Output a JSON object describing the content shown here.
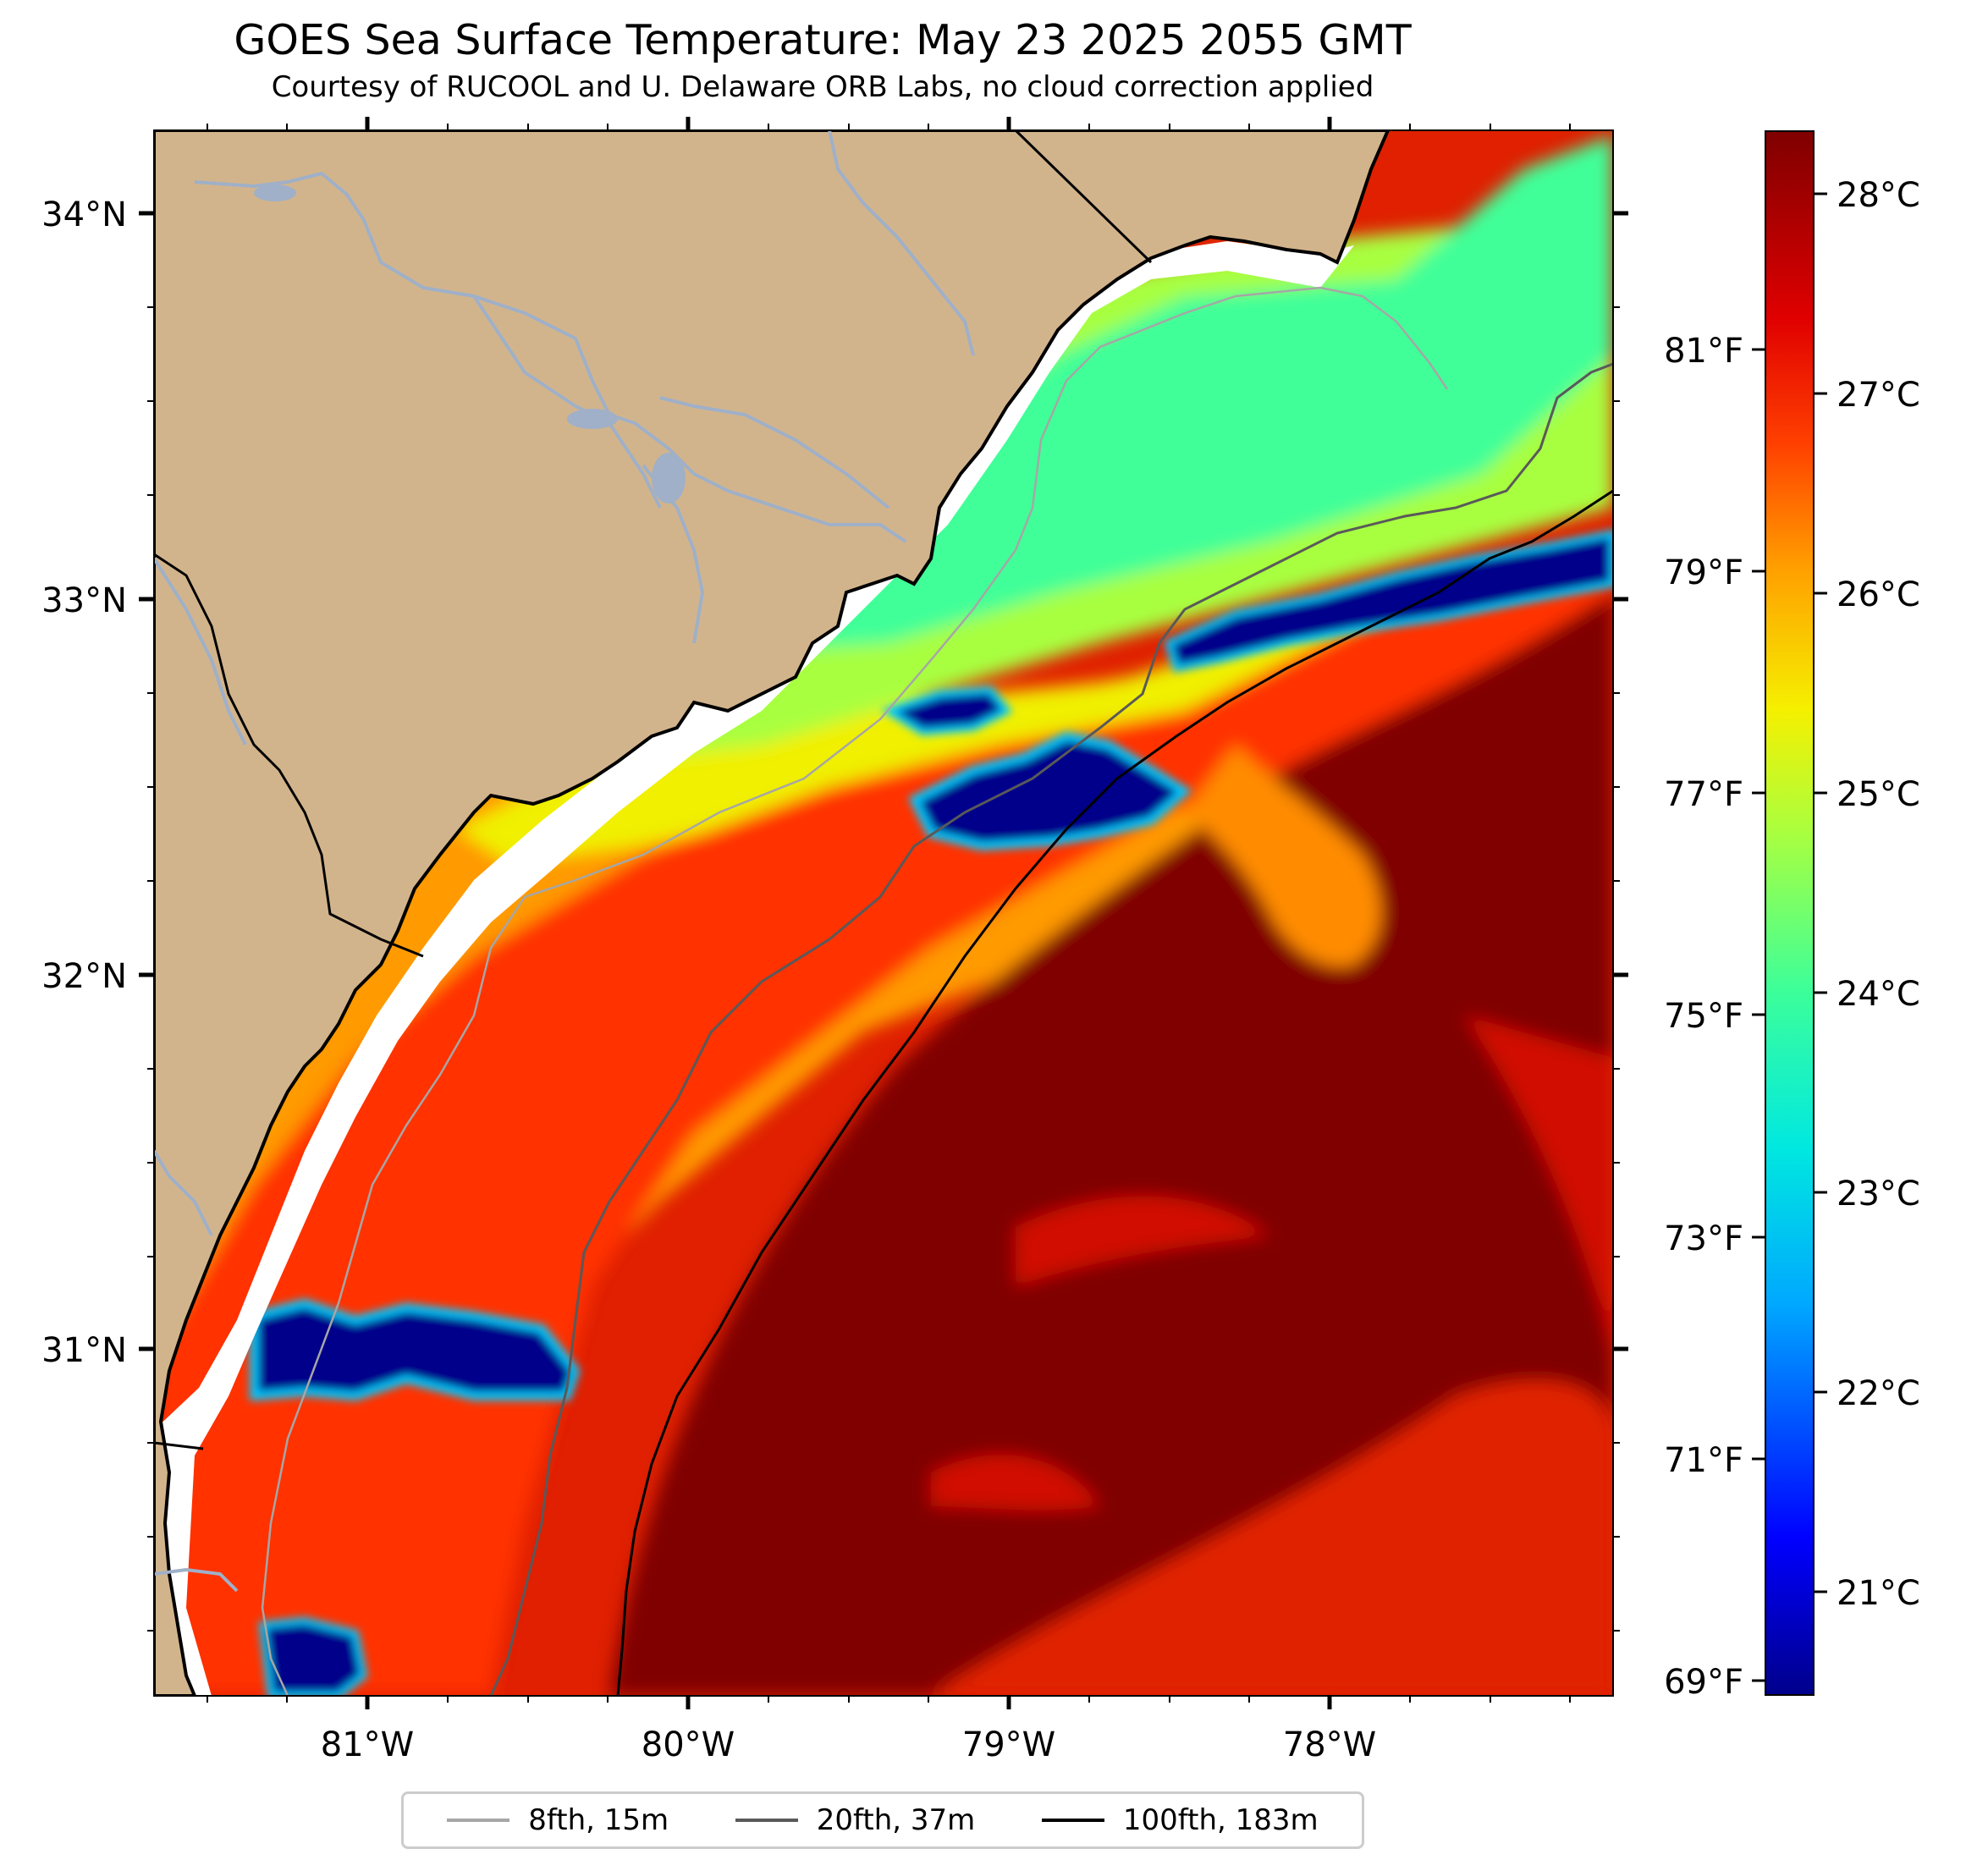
{
  "title": "GOES Sea Surface Temperature: May 23 2025 2055 GMT",
  "subtitle": "Courtesy of RUCOOL and U. Delaware ORB Labs, no cloud correction applied",
  "axes": {
    "longitude_ticks": [
      "81°W",
      "80°W",
      "79°W",
      "78°W"
    ],
    "latitude_ticks": [
      "34°N",
      "33°N",
      "32°N",
      "31°N"
    ],
    "fahrenheit_ticks": [
      "81°F",
      "79°F",
      "77°F",
      "75°F",
      "73°F",
      "71°F",
      "69°F"
    ]
  },
  "colorbar": {
    "celsius_ticks": [
      "28°C",
      "27°C",
      "26°C",
      "25°C",
      "24°C",
      "23°C",
      "22°C",
      "21°C"
    ],
    "colors": [
      "#00008b",
      "#0000ff",
      "#00a8ff",
      "#00e8e0",
      "#3cff9a",
      "#a8ff40",
      "#f5f000",
      "#ffa000",
      "#ff4000",
      "#e00000",
      "#7f0000"
    ]
  },
  "legend": [
    {
      "label": "8fth, 15m",
      "color": "#a6a6a6"
    },
    {
      "label": "20fth, 37m",
      "color": "#595959"
    },
    {
      "label": "100fth, 183m",
      "color": "#000000"
    }
  ],
  "map_colors": {
    "land": "#d2b48c",
    "river": "#9fb0c8",
    "warm_core": "#800000",
    "cloud_mask": "#00008b",
    "no_data": "#ffffff"
  }
}
